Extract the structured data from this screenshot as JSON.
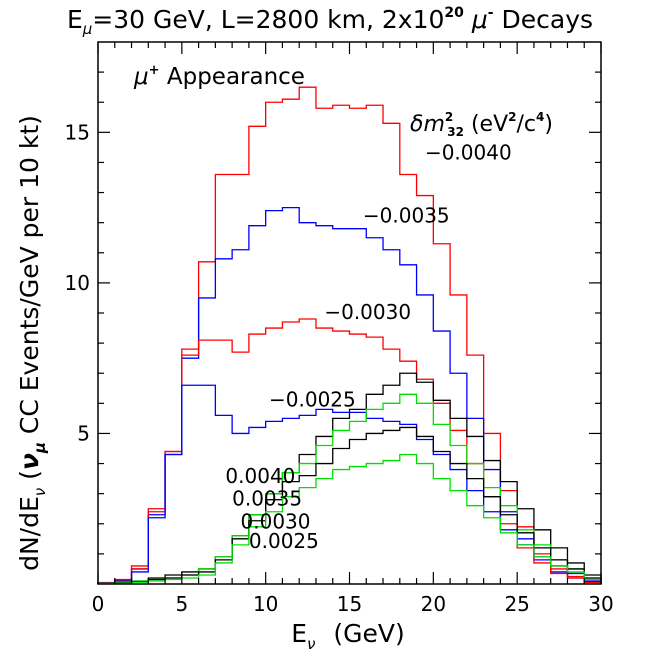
{
  "chart_data": {
    "type": "line",
    "step": true,
    "title": "E_μ=30 GeV, L=2800 km, 2x10²⁰ μ⁻ Decays",
    "title_parts": {
      "e": "E",
      "mu_sub": "μ",
      "mid": "=30 GeV, L=2800 km, 2x10",
      "exp": "20",
      "mu": " μ",
      "minus": "-",
      "end": " Decays"
    },
    "xlabel": "E_ν (GeV)",
    "xlabel_parts": {
      "e": "E",
      "nu_sub": "ν",
      "unit": "(GeV)"
    },
    "ylabel": "dN/dE_ν (ν_μ CC Events/GeV per 10 kt)",
    "ylabel_parts": {
      "a": "dN/dE",
      "nu_sub": "ν",
      "b": "  (",
      "nu": "ν",
      "mu_sub": "μ",
      "c": " CC Events/GeV per 10 kt)"
    },
    "inset_label": "μ⁺ Appearance",
    "inset_parts": {
      "mu": "μ",
      "plus": "+",
      "text": " Appearance"
    },
    "legend_title": "δm²₃₂ (eV²/c⁴)",
    "legend_parts": {
      "delta": "δm",
      "sup2": "2",
      "sub32": "32",
      "unit": " (eV",
      "sup2b": "2",
      "slash": "/c",
      "sup4": "4",
      "close": ")"
    },
    "xlim": [
      0,
      30
    ],
    "ylim": [
      0,
      18
    ],
    "x_ticks": [
      0,
      5,
      10,
      15,
      20,
      25,
      30
    ],
    "y_ticks": [
      5,
      10,
      15
    ],
    "x_tick_labels": [
      "0",
      "5",
      "10",
      "15",
      "20",
      "25",
      "30"
    ],
    "y_tick_labels": [
      "5",
      "10",
      "15"
    ],
    "grid": false,
    "bin_width": 1,
    "series": [
      {
        "name": "−0.0040",
        "color": "#ff0000",
        "values": [
          0.05,
          0.15,
          0.6,
          2.5,
          4.4,
          7.8,
          10.7,
          13.6,
          13.6,
          15.2,
          16.0,
          16.1,
          16.5,
          15.8,
          15.9,
          15.8,
          15.9,
          15.3,
          13.6,
          12.9,
          11.3,
          9.6,
          7.6,
          5.0,
          3.1,
          1.9,
          1.0,
          0.5,
          0.25,
          0.08
        ]
      },
      {
        "name": "−0.0035",
        "color": "#0000ff",
        "values": [
          0.04,
          0.12,
          0.5,
          2.3,
          4.3,
          7.5,
          9.5,
          10.8,
          11.1,
          11.9,
          12.4,
          12.5,
          12.0,
          11.9,
          11.8,
          11.8,
          11.5,
          11.1,
          10.6,
          9.6,
          8.4,
          7.0,
          5.5,
          3.8,
          2.4,
          1.5,
          0.8,
          0.4,
          0.2,
          0.06
        ]
      },
      {
        "name": "−0.0030",
        "color": "#ff0000",
        "values": [
          0.04,
          0.12,
          0.5,
          2.4,
          4.4,
          7.6,
          8.1,
          8.1,
          7.7,
          8.3,
          8.5,
          8.7,
          8.8,
          8.5,
          8.4,
          8.3,
          8.2,
          7.8,
          7.4,
          6.8,
          6.0,
          5.1,
          4.0,
          2.9,
          2.0,
          1.2,
          0.7,
          0.35,
          0.2,
          0.05
        ]
      },
      {
        "name": "−0.0025",
        "color": "#0000ff",
        "values": [
          0.03,
          0.1,
          0.4,
          2.2,
          4.3,
          6.6,
          6.6,
          5.6,
          5.0,
          5.2,
          5.4,
          5.5,
          5.6,
          5.8,
          5.7,
          5.7,
          5.5,
          5.4,
          5.3,
          4.8,
          4.3,
          3.8,
          3.1,
          2.4,
          1.8,
          1.3,
          0.9,
          0.6,
          0.35,
          0.1
        ]
      },
      {
        "name": "0.0040",
        "color": "#000000",
        "values": [
          0.02,
          0.05,
          0.1,
          0.2,
          0.3,
          0.4,
          0.5,
          0.9,
          1.6,
          2.3,
          3.0,
          3.7,
          4.3,
          4.9,
          5.5,
          5.8,
          6.3,
          6.6,
          7.0,
          6.7,
          6.1,
          5.5,
          4.9,
          4.1,
          3.4,
          2.5,
          1.8,
          1.2,
          0.7,
          0.3
        ]
      },
      {
        "name": "0.0035",
        "color": "#00e000",
        "values": [
          0.02,
          0.05,
          0.1,
          0.15,
          0.2,
          0.3,
          0.5,
          0.9,
          1.6,
          2.3,
          3.0,
          3.7,
          4.0,
          4.6,
          5.1,
          5.4,
          5.8,
          6.0,
          6.3,
          6.0,
          5.3,
          4.6,
          4.0,
          3.2,
          2.6,
          1.8,
          1.3,
          0.8,
          0.5,
          0.2
        ]
      },
      {
        "name": "0.0030",
        "color": "#000000",
        "values": [
          0.01,
          0.04,
          0.08,
          0.15,
          0.2,
          0.3,
          0.4,
          0.8,
          1.5,
          2.1,
          2.8,
          3.4,
          3.6,
          4.0,
          4.5,
          4.8,
          5.0,
          5.1,
          5.2,
          4.9,
          4.4,
          4.0,
          3.5,
          2.9,
          2.3,
          1.7,
          1.2,
          0.8,
          0.5,
          0.2
        ]
      },
      {
        "name": "0.0025",
        "color": "#00e000",
        "values": [
          0.01,
          0.03,
          0.06,
          0.1,
          0.15,
          0.2,
          0.3,
          0.7,
          1.3,
          1.9,
          2.4,
          2.9,
          3.2,
          3.5,
          3.8,
          3.9,
          4.0,
          4.1,
          4.3,
          4.0,
          3.5,
          3.1,
          2.6,
          2.2,
          1.7,
          1.3,
          0.9,
          0.6,
          0.4,
          0.15
        ]
      }
    ],
    "annotations": [
      {
        "text": "−0.0040",
        "x": 19.5,
        "y": 14.1
      },
      {
        "text": "−0.0035",
        "x": 15.8,
        "y": 12.0
      },
      {
        "text": "−0.0030",
        "x": 13.5,
        "y": 8.8
      },
      {
        "text": "−0.0025",
        "x": 10.2,
        "y": 5.9
      },
      {
        "text": "0.0040",
        "x": 7.6,
        "y": 3.35
      },
      {
        "text": "0.0035",
        "x": 8.0,
        "y": 2.6
      },
      {
        "text": "0.0030",
        "x": 8.5,
        "y": 1.85
      },
      {
        "text": "0.0025",
        "x": 9.0,
        "y": 1.2
      }
    ]
  }
}
